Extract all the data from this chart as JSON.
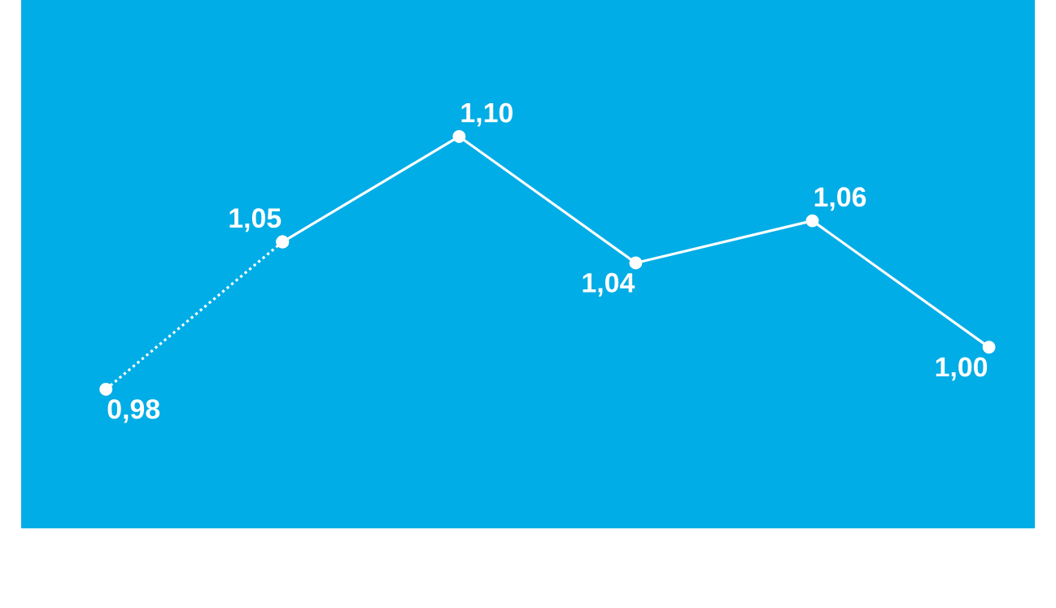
{
  "chart_data": {
    "type": "line",
    "categories": [
      null,
      null,
      null,
      null,
      null,
      null
    ],
    "series": [
      {
        "color": "#ffffff",
        "line_style": "dotted",
        "values": [
          0.98,
          1.05,
          null,
          null,
          null,
          null
        ],
        "value_labels": [
          "0,98",
          null,
          null,
          null,
          null,
          null
        ]
      },
      {
        "color": "#ffffff",
        "line_style": "solid",
        "values": [
          null,
          1.05,
          1.1,
          1.04,
          1.06,
          1.0
        ],
        "value_labels": [
          null,
          "1,05",
          "1,10",
          "1,04",
          "1,06",
          "1,00"
        ]
      }
    ],
    "marker": "circle"
  }
}
